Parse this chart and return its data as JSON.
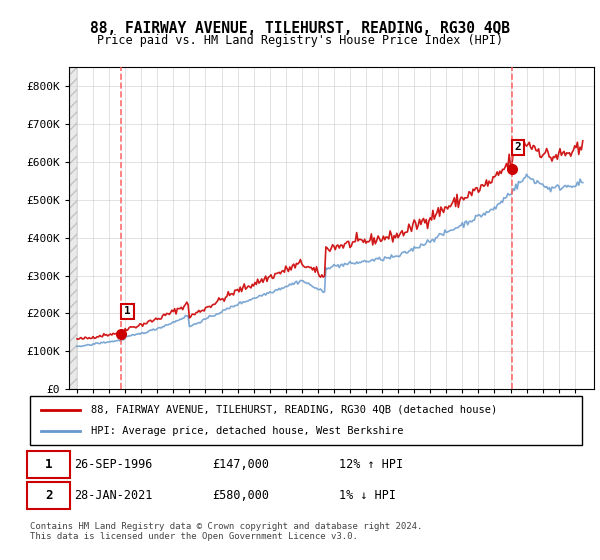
{
  "title": "88, FAIRWAY AVENUE, TILEHURST, READING, RG30 4QB",
  "subtitle": "Price paid vs. HM Land Registry's House Price Index (HPI)",
  "legend_line1": "88, FAIRWAY AVENUE, TILEHURST, READING, RG30 4QB (detached house)",
  "legend_line2": "HPI: Average price, detached house, West Berkshire",
  "annotation_footer": "Contains HM Land Registry data © Crown copyright and database right 2024.\nThis data is licensed under the Open Government Licence v3.0.",
  "sale1_date": "26-SEP-1996",
  "sale1_price": "£147,000",
  "sale1_hpi": "12% ↑ HPI",
  "sale2_date": "28-JAN-2021",
  "sale2_price": "£580,000",
  "sale2_hpi": "1% ↓ HPI",
  "red_line_color": "#cc0000",
  "blue_line_color": "#6699cc",
  "dashed_line_color": "#ff5555",
  "background_color": "#ffffff",
  "sale1_x": 1996.73,
  "sale2_x": 2021.07,
  "sale1_y": 147000,
  "sale2_y": 580000,
  "ylim": [
    0,
    850000
  ],
  "xlim_start": 1993.5,
  "xlim_end": 2026.2,
  "yticks": [
    0,
    100000,
    200000,
    300000,
    400000,
    500000,
    600000,
    700000,
    800000
  ],
  "ytick_labels": [
    "£0",
    "£100K",
    "£200K",
    "£300K",
    "£400K",
    "£500K",
    "£600K",
    "£700K",
    "£800K"
  ],
  "xticks": [
    1994,
    1995,
    1996,
    1997,
    1998,
    1999,
    2000,
    2001,
    2002,
    2003,
    2004,
    2005,
    2006,
    2007,
    2008,
    2009,
    2010,
    2011,
    2012,
    2013,
    2014,
    2015,
    2016,
    2017,
    2018,
    2019,
    2020,
    2021,
    2022,
    2023,
    2024,
    2025
  ]
}
